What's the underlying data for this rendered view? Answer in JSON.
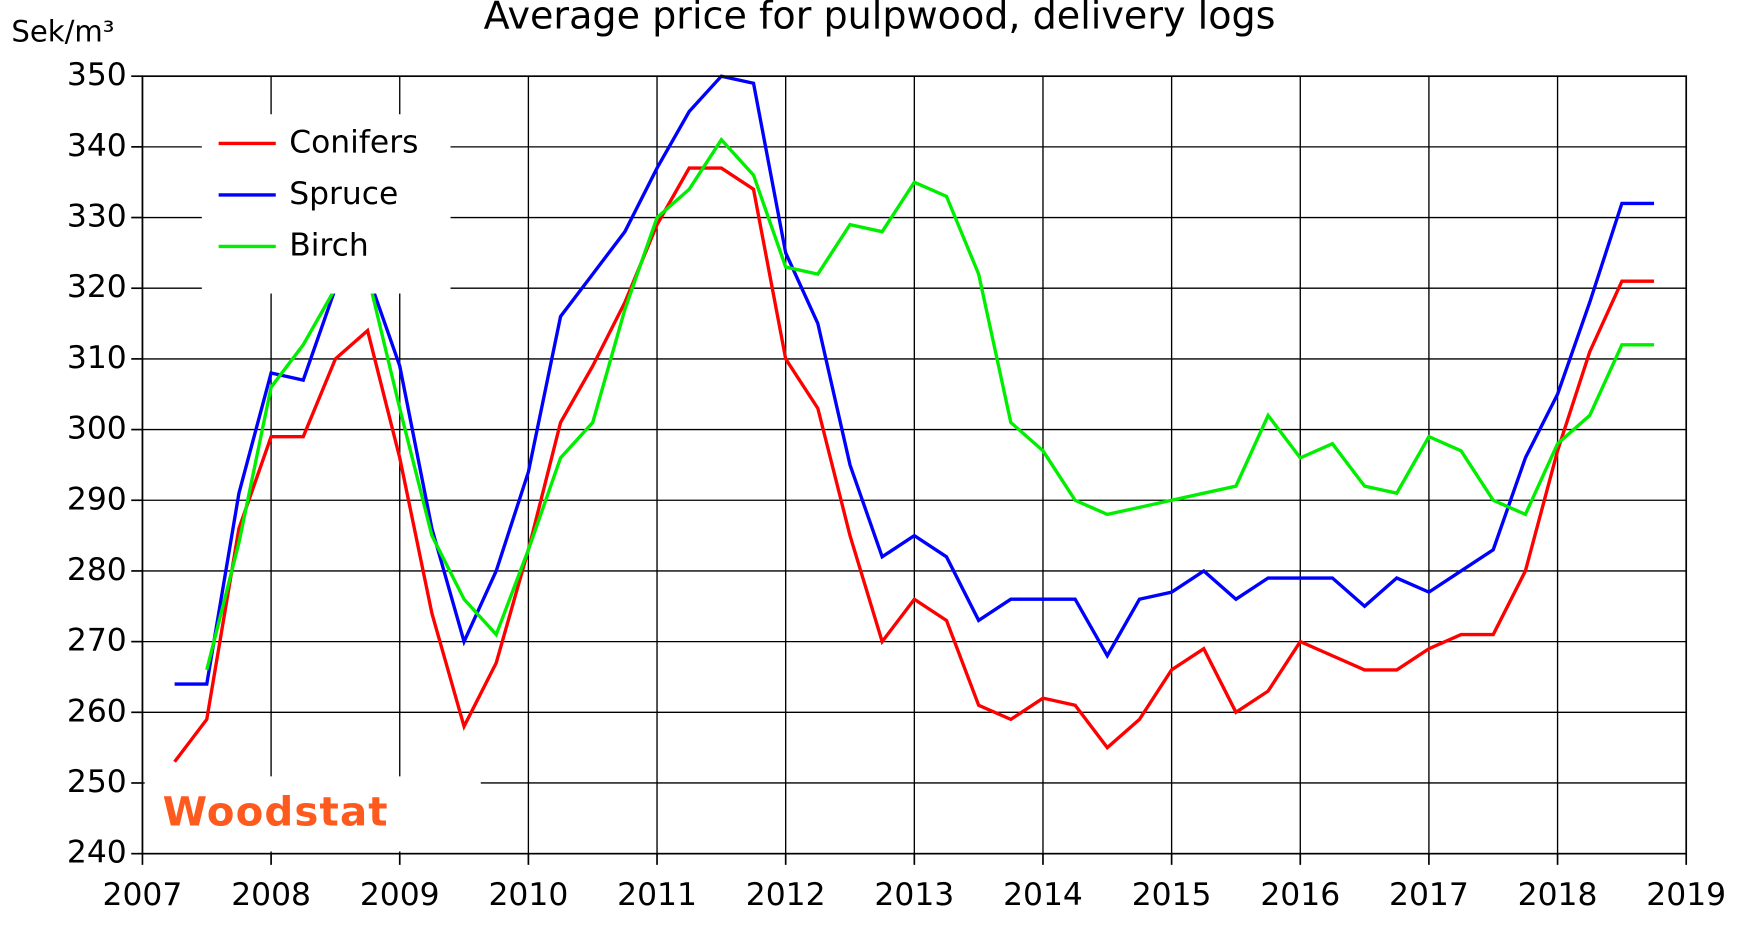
{
  "chart_data": {
    "type": "line",
    "title": "Average price for pulpwood, delivery logs",
    "y_label": "Sek/m³",
    "logo": "Woodstat",
    "x": [
      2007.25,
      2007.5,
      2007.75,
      2008,
      2008.25,
      2008.5,
      2008.75,
      2009,
      2009.25,
      2009.5,
      2009.75,
      2010,
      2010.25,
      2010.5,
      2010.75,
      2011,
      2011.25,
      2011.5,
      2011.75,
      2012,
      2012.25,
      2012.5,
      2012.75,
      2013,
      2013.25,
      2013.5,
      2013.75,
      2014,
      2014.25,
      2014.5,
      2014.75,
      2015,
      2015.25,
      2015.5,
      2015.75,
      2016,
      2016.25,
      2016.5,
      2016.75,
      2017,
      2017.25,
      2017.5,
      2017.75,
      2018,
      2018.25,
      2018.5,
      2018.75
    ],
    "series": [
      {
        "name": "Conifers",
        "color": "#ff0000",
        "values": [
          253,
          259,
          286,
          299,
          299,
          310,
          314,
          296,
          274,
          258,
          267,
          283,
          301,
          309,
          318,
          329,
          337,
          337,
          334,
          310,
          303,
          285,
          270,
          276,
          273,
          261,
          259,
          262,
          261,
          255,
          259,
          266,
          269,
          260,
          263,
          270,
          268,
          266,
          266,
          269,
          271,
          271,
          280,
          297,
          311,
          321,
          321
        ]
      },
      {
        "name": "Spruce",
        "color": "#0000ff",
        "values": [
          264,
          264,
          291,
          308,
          307,
          320,
          322,
          309,
          286,
          270,
          280,
          294,
          316,
          322,
          328,
          337,
          345,
          350,
          349,
          325,
          315,
          295,
          282,
          285,
          282,
          273,
          276,
          276,
          276,
          268,
          276,
          277,
          280,
          276,
          279,
          279,
          279,
          275,
          279,
          277,
          280,
          283,
          296,
          305,
          318,
          332,
          332
        ]
      },
      {
        "name": "Birch",
        "color": "#00ee00",
        "values": [
          null,
          266,
          284,
          306,
          312,
          320,
          322,
          303,
          285,
          276,
          271,
          283,
          296,
          301,
          317,
          330,
          334,
          341,
          336,
          323,
          322,
          329,
          328,
          335,
          333,
          322,
          301,
          297,
          290,
          288,
          289,
          290,
          291,
          292,
          302,
          296,
          298,
          292,
          291,
          299,
          297,
          290,
          288,
          298,
          302,
          312,
          312
        ]
      }
    ],
    "xlim": [
      2007,
      2019
    ],
    "xticks": [
      2007,
      2008,
      2009,
      2010,
      2011,
      2012,
      2013,
      2014,
      2015,
      2016,
      2017,
      2018,
      2019
    ],
    "ylim": [
      240,
      350
    ],
    "yticks": [
      240,
      250,
      260,
      270,
      280,
      290,
      300,
      310,
      320,
      330,
      340,
      350
    ],
    "grid": true,
    "legend": "upper left"
  }
}
